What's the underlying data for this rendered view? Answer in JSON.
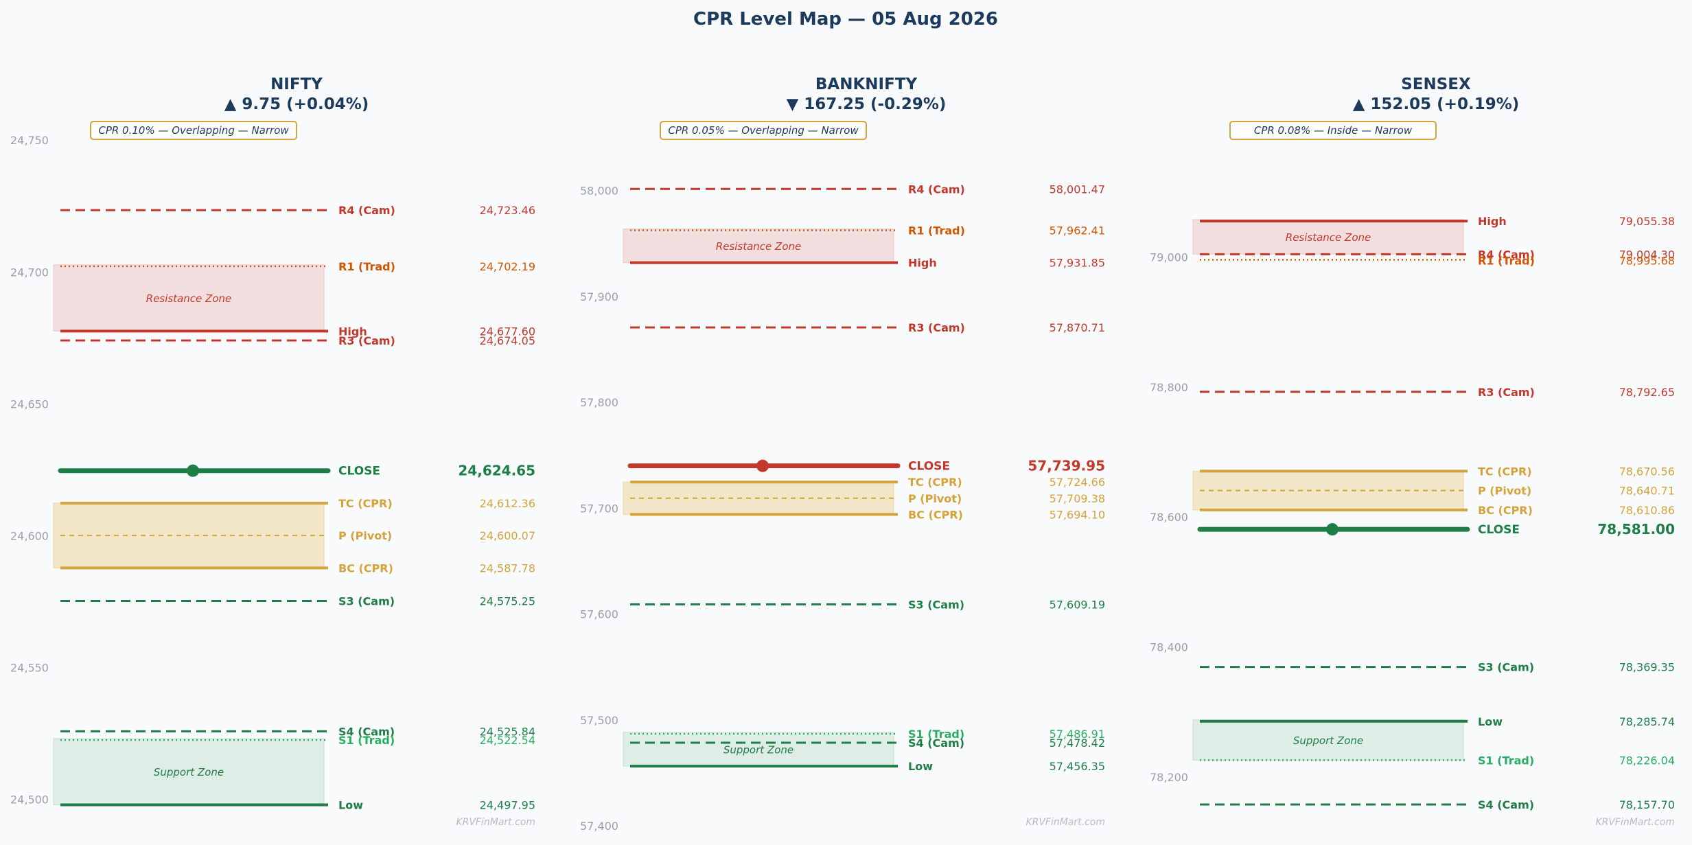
{
  "title": "CPR Level Map — 05 Aug 2026",
  "watermark": "KRVFinMart.com",
  "colors": {
    "background": "#f8fafc",
    "title": "#1b3a5c",
    "resistance": "#c0392b",
    "r1": "#d35400",
    "support": "#1e7e45",
    "s1": "#27ae60",
    "cpr": "#d4a33a",
    "tick": "#9aa0a6",
    "badge_border": "#d4a33a",
    "resistance_zone_fill": "#f2dcdc",
    "support_zone_fill": "#dcece3",
    "cpr_zone_fill": "#f2e4c4"
  },
  "chart_data": [
    {
      "type": "line",
      "name": "NIFTY",
      "change": "▲ 9.75 (+0.04%)",
      "direction": "up",
      "badge": "CPR 0.10% — Overlapping — Narrow",
      "ylim": [
        24490,
        24755
      ],
      "yticks": [
        24500,
        24550,
        24600,
        24650,
        24700,
        24750
      ],
      "ytick_labels": [
        "24,500",
        "24,550",
        "24,600",
        "24,650",
        "24,700",
        "24,750"
      ],
      "resistance_zone": {
        "label": "Resistance Zone",
        "from": 24677.6,
        "to": 24702.19
      },
      "support_zone": {
        "label": "Support Zone",
        "from": 24497.95,
        "to": 24522.54
      },
      "cpr_zone": {
        "from": 24587.78,
        "to": 24612.36
      },
      "levels": [
        {
          "label": "R4 (Cam)",
          "value": 24723.46,
          "display": "24,723.46",
          "kind": "cam_r"
        },
        {
          "label": "R1 (Trad)",
          "value": 24702.19,
          "display": "24,702.19",
          "kind": "trad_r"
        },
        {
          "label": "High",
          "value": 24677.6,
          "display": "24,677.60",
          "kind": "high"
        },
        {
          "label": "R3 (Cam)",
          "value": 24674.05,
          "display": "24,674.05",
          "kind": "cam_r"
        },
        {
          "label": "CLOSE",
          "value": 24624.65,
          "display": "24,624.65",
          "kind": "close"
        },
        {
          "label": "TC (CPR)",
          "value": 24612.36,
          "display": "24,612.36",
          "kind": "tc"
        },
        {
          "label": "P (Pivot)",
          "value": 24600.07,
          "display": "24,600.07",
          "kind": "pivot"
        },
        {
          "label": "BC (CPR)",
          "value": 24587.78,
          "display": "24,587.78",
          "kind": "bc"
        },
        {
          "label": "S3 (Cam)",
          "value": 24575.25,
          "display": "24,575.25",
          "kind": "cam_s"
        },
        {
          "label": "S4 (Cam)",
          "value": 24525.84,
          "display": "24,525.84",
          "kind": "cam_s"
        },
        {
          "label": "S1 (Trad)",
          "value": 24522.54,
          "display": "24,522.54",
          "kind": "trad_s"
        },
        {
          "label": "Low",
          "value": 24497.95,
          "display": "24,497.95",
          "kind": "low"
        }
      ]
    },
    {
      "type": "line",
      "name": "BANKNIFTY",
      "change": "▼ 167.25 (-0.29%)",
      "direction": "down",
      "badge": "CPR 0.05% — Overlapping — Narrow",
      "ylim": [
        57400,
        58060
      ],
      "yticks": [
        57400,
        57500,
        57600,
        57700,
        57800,
        57900,
        58000
      ],
      "ytick_labels": [
        "57,400",
        "57,500",
        "57,600",
        "57,700",
        "57,800",
        "57,900",
        "58,000"
      ],
      "resistance_zone": {
        "label": "Resistance Zone",
        "from": 57931.85,
        "to": 57962.41
      },
      "support_zone": {
        "label": "Support Zone",
        "from": 57456.35,
        "to": 57486.91
      },
      "cpr_zone": {
        "from": 57694.1,
        "to": 57724.66
      },
      "levels": [
        {
          "label": "R4 (Cam)",
          "value": 58001.47,
          "display": "58,001.47",
          "kind": "cam_r"
        },
        {
          "label": "R1 (Trad)",
          "value": 57962.41,
          "display": "57,962.41",
          "kind": "trad_r"
        },
        {
          "label": "High",
          "value": 57931.85,
          "display": "57,931.85",
          "kind": "high"
        },
        {
          "label": "R3 (Cam)",
          "value": 57870.71,
          "display": "57,870.71",
          "kind": "cam_r"
        },
        {
          "label": "CLOSE",
          "value": 57739.95,
          "display": "57,739.95",
          "kind": "close"
        },
        {
          "label": "TC (CPR)",
          "value": 57724.66,
          "display": "57,724.66",
          "kind": "tc"
        },
        {
          "label": "P (Pivot)",
          "value": 57709.38,
          "display": "57,709.38",
          "kind": "pivot"
        },
        {
          "label": "BC (CPR)",
          "value": 57694.1,
          "display": "57,694.10",
          "kind": "bc"
        },
        {
          "label": "S3 (Cam)",
          "value": 57609.19,
          "display": "57,609.19",
          "kind": "cam_s"
        },
        {
          "label": "S1 (Trad)",
          "value": 57486.91,
          "display": "57,486.91",
          "kind": "trad_s"
        },
        {
          "label": "S4 (Cam)",
          "value": 57478.42,
          "display": "57,478.42",
          "kind": "cam_s"
        },
        {
          "label": "Low",
          "value": 57456.35,
          "display": "57,456.35",
          "kind": "low"
        }
      ]
    },
    {
      "type": "line",
      "name": "SENSEX",
      "change": "▲ 152.05 (+0.19%)",
      "direction": "up",
      "badge": "CPR 0.08% — Inside — Narrow",
      "ylim": [
        78125,
        79200
      ],
      "yticks": [
        78200,
        78400,
        78600,
        78800,
        79000
      ],
      "ytick_labels": [
        "78,200",
        "78,400",
        "78,600",
        "78,800",
        "79,000"
      ],
      "resistance_zone": {
        "label": "Resistance Zone",
        "from": 79004.3,
        "to": 79055.38
      },
      "support_zone": {
        "label": "Support Zone",
        "from": 78226.04,
        "to": 78285.74
      },
      "cpr_zone": {
        "from": 78610.86,
        "to": 78670.56
      },
      "levels": [
        {
          "label": "High",
          "value": 79055.38,
          "display": "79,055.38",
          "kind": "high"
        },
        {
          "label": "R4 (Cam)",
          "value": 79004.3,
          "display": "79,004.30",
          "kind": "cam_r"
        },
        {
          "label": "R1 (Trad)",
          "value": 78995.68,
          "display": "78,995.68",
          "kind": "trad_r"
        },
        {
          "label": "R3 (Cam)",
          "value": 78792.65,
          "display": "78,792.65",
          "kind": "cam_r"
        },
        {
          "label": "TC (CPR)",
          "value": 78670.56,
          "display": "78,670.56",
          "kind": "tc"
        },
        {
          "label": "P (Pivot)",
          "value": 78640.71,
          "display": "78,640.71",
          "kind": "pivot"
        },
        {
          "label": "BC (CPR)",
          "value": 78610.86,
          "display": "78,610.86",
          "kind": "bc"
        },
        {
          "label": "CLOSE",
          "value": 78581.0,
          "display": "78,581.00",
          "kind": "close"
        },
        {
          "label": "S3 (Cam)",
          "value": 78369.35,
          "display": "78,369.35",
          "kind": "cam_s"
        },
        {
          "label": "Low",
          "value": 78285.74,
          "display": "78,285.74",
          "kind": "low"
        },
        {
          "label": "S1 (Trad)",
          "value": 78226.04,
          "display": "78,226.04",
          "kind": "trad_s"
        },
        {
          "label": "S4 (Cam)",
          "value": 78157.7,
          "display": "78,157.70",
          "kind": "cam_s"
        }
      ]
    }
  ]
}
